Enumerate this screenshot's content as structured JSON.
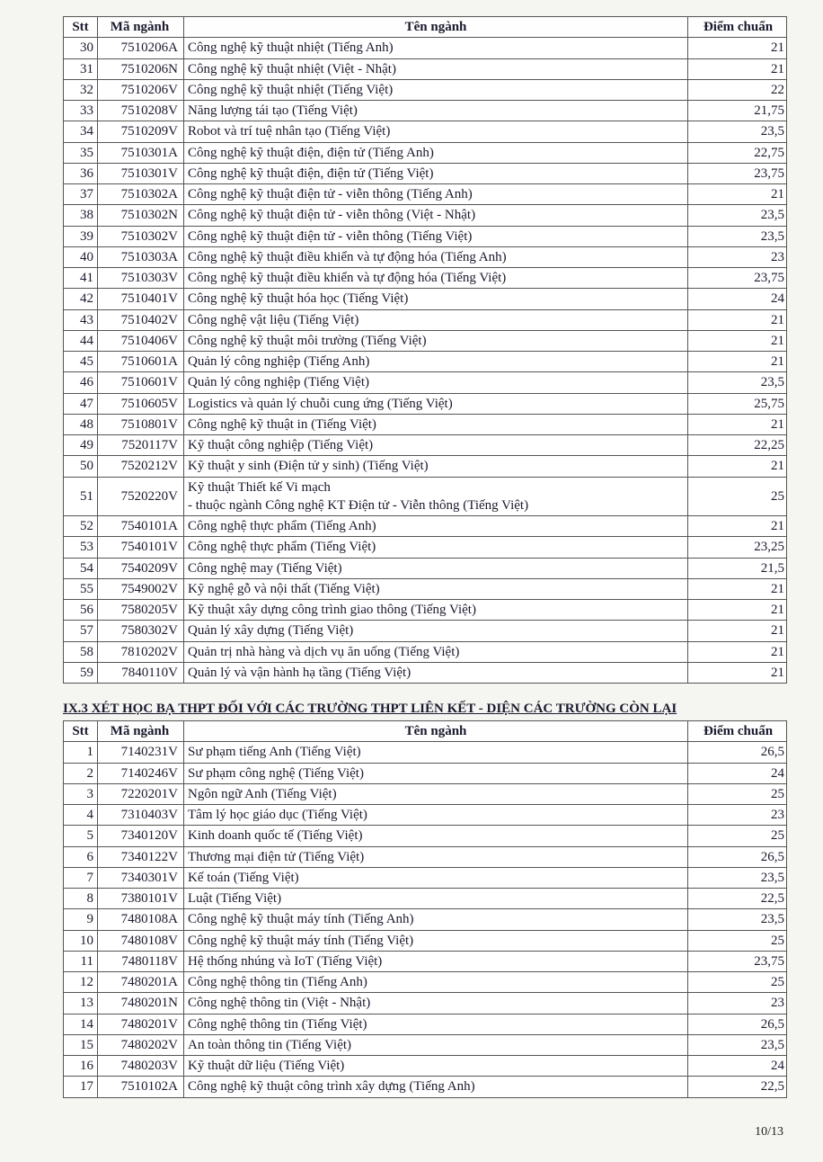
{
  "table1": {
    "headers": {
      "stt": "Stt",
      "ma": "Mã ngành",
      "ten": "Tên ngành",
      "diem": "Điểm chuẩn"
    },
    "rows": [
      {
        "stt": "30",
        "ma": "7510206A",
        "ten": "Công nghệ kỹ thuật nhiệt (Tiếng Anh)",
        "diem": "21"
      },
      {
        "stt": "31",
        "ma": "7510206N",
        "ten": "Công nghệ kỹ thuật nhiệt (Việt - Nhật)",
        "diem": "21"
      },
      {
        "stt": "32",
        "ma": "7510206V",
        "ten": "Công nghệ kỹ thuật nhiệt (Tiếng Việt)",
        "diem": "22"
      },
      {
        "stt": "33",
        "ma": "7510208V",
        "ten": "Năng lượng tái tạo (Tiếng Việt)",
        "diem": "21,75"
      },
      {
        "stt": "34",
        "ma": "7510209V",
        "ten": "Robot và trí tuệ nhân tạo (Tiếng Việt)",
        "diem": "23,5"
      },
      {
        "stt": "35",
        "ma": "7510301A",
        "ten": "Công nghệ kỹ thuật điện, điện tử (Tiếng Anh)",
        "diem": "22,75"
      },
      {
        "stt": "36",
        "ma": "7510301V",
        "ten": "Công nghệ kỹ thuật điện, điện tử (Tiếng Việt)",
        "diem": "23,75"
      },
      {
        "stt": "37",
        "ma": "7510302A",
        "ten": "Công nghệ kỹ thuật điện tử - viễn thông (Tiếng Anh)",
        "diem": "21"
      },
      {
        "stt": "38",
        "ma": "7510302N",
        "ten": "Công nghệ kỹ thuật điện tử - viễn thông (Việt - Nhật)",
        "diem": "23,5"
      },
      {
        "stt": "39",
        "ma": "7510302V",
        "ten": "Công nghệ kỹ thuật điện tử - viễn thông (Tiếng Việt)",
        "diem": "23,5"
      },
      {
        "stt": "40",
        "ma": "7510303A",
        "ten": "Công nghệ kỹ thuật điều khiển và tự động hóa (Tiếng Anh)",
        "diem": "23"
      },
      {
        "stt": "41",
        "ma": "7510303V",
        "ten": "Công nghệ kỹ thuật điều khiển và tự động hóa (Tiếng Việt)",
        "diem": "23,75"
      },
      {
        "stt": "42",
        "ma": "7510401V",
        "ten": "Công nghệ kỹ thuật hóa học (Tiếng Việt)",
        "diem": "24"
      },
      {
        "stt": "43",
        "ma": "7510402V",
        "ten": "Công nghệ vật liệu (Tiếng Việt)",
        "diem": "21"
      },
      {
        "stt": "44",
        "ma": "7510406V",
        "ten": "Công nghệ kỹ thuật môi trường (Tiếng Việt)",
        "diem": "21"
      },
      {
        "stt": "45",
        "ma": "7510601A",
        "ten": "Quản lý công nghiệp (Tiếng Anh)",
        "diem": "21"
      },
      {
        "stt": "46",
        "ma": "7510601V",
        "ten": "Quản lý công nghiệp (Tiếng Việt)",
        "diem": "23,5"
      },
      {
        "stt": "47",
        "ma": "7510605V",
        "ten": "Logistics và quản lý chuỗi cung ứng (Tiếng Việt)",
        "diem": "25,75"
      },
      {
        "stt": "48",
        "ma": "7510801V",
        "ten": "Công nghệ kỹ thuật in (Tiếng Việt)",
        "diem": "21"
      },
      {
        "stt": "49",
        "ma": "7520117V",
        "ten": "Kỹ thuật công nghiệp (Tiếng Việt)",
        "diem": "22,25"
      },
      {
        "stt": "50",
        "ma": "7520212V",
        "ten": "Kỹ thuật y sinh (Điện tử y sinh) (Tiếng Việt)",
        "diem": "21"
      },
      {
        "stt": "51",
        "ma": "7520220V",
        "ten": "Kỹ thuật Thiết kế Vi mạch\n- thuộc ngành Công nghệ KT Điện tử - Viễn thông (Tiếng Việt)",
        "diem": "25",
        "multi": true
      },
      {
        "stt": "52",
        "ma": "7540101A",
        "ten": "Công nghệ thực phẩm (Tiếng Anh)",
        "diem": "21"
      },
      {
        "stt": "53",
        "ma": "7540101V",
        "ten": "Công nghệ thực phẩm (Tiếng Việt)",
        "diem": "23,25"
      },
      {
        "stt": "54",
        "ma": "7540209V",
        "ten": "Công nghệ may (Tiếng Việt)",
        "diem": "21,5"
      },
      {
        "stt": "55",
        "ma": "7549002V",
        "ten": "Kỹ nghệ gỗ và nội thất (Tiếng Việt)",
        "diem": "21"
      },
      {
        "stt": "56",
        "ma": "7580205V",
        "ten": "Kỹ thuật xây dựng công trình giao thông (Tiếng Việt)",
        "diem": "21"
      },
      {
        "stt": "57",
        "ma": "7580302V",
        "ten": "Quản lý xây dựng (Tiếng Việt)",
        "diem": "21"
      },
      {
        "stt": "58",
        "ma": "7810202V",
        "ten": "Quản trị nhà hàng và dịch vụ ăn uống (Tiếng Việt)",
        "diem": "21"
      },
      {
        "stt": "59",
        "ma": "7840110V",
        "ten": "Quản lý và vận hành hạ tầng (Tiếng Việt)",
        "diem": "21"
      }
    ]
  },
  "section_title": "IX.3 XÉT HỌC BẠ THPT ĐỐI VỚI CÁC TRƯỜNG THPT LIÊN KẾT - DIỆN CÁC TRƯỜNG CÒN LẠI",
  "table2": {
    "headers": {
      "stt": "Stt",
      "ma": "Mã ngành",
      "ten": "Tên ngành",
      "diem": "Điểm chuẩn"
    },
    "rows": [
      {
        "stt": "1",
        "ma": "7140231V",
        "ten": "Sư phạm tiếng Anh (Tiếng Việt)",
        "diem": "26,5"
      },
      {
        "stt": "2",
        "ma": "7140246V",
        "ten": "Sư phạm công nghệ (Tiếng Việt)",
        "diem": "24"
      },
      {
        "stt": "3",
        "ma": "7220201V",
        "ten": "Ngôn ngữ Anh (Tiếng Việt)",
        "diem": "25"
      },
      {
        "stt": "4",
        "ma": "7310403V",
        "ten": "Tâm lý học giáo dục (Tiếng Việt)",
        "diem": "23"
      },
      {
        "stt": "5",
        "ma": "7340120V",
        "ten": "Kinh doanh quốc tế (Tiếng Việt)",
        "diem": "25"
      },
      {
        "stt": "6",
        "ma": "7340122V",
        "ten": "Thương mại điện tử (Tiếng Việt)",
        "diem": "26,5"
      },
      {
        "stt": "7",
        "ma": "7340301V",
        "ten": "Kế toán (Tiếng Việt)",
        "diem": "23,5"
      },
      {
        "stt": "8",
        "ma": "7380101V",
        "ten": "Luật (Tiếng Việt)",
        "diem": "22,5"
      },
      {
        "stt": "9",
        "ma": "7480108A",
        "ten": "Công nghệ kỹ thuật máy tính (Tiếng Anh)",
        "diem": "23,5"
      },
      {
        "stt": "10",
        "ma": "7480108V",
        "ten": "Công nghệ kỹ thuật máy tính (Tiếng Việt)",
        "diem": "25"
      },
      {
        "stt": "11",
        "ma": "7480118V",
        "ten": "Hệ thống nhúng và IoT (Tiếng Việt)",
        "diem": "23,75"
      },
      {
        "stt": "12",
        "ma": "7480201A",
        "ten": "Công nghệ thông tin (Tiếng Anh)",
        "diem": "25"
      },
      {
        "stt": "13",
        "ma": "7480201N",
        "ten": "Công nghệ thông tin (Việt - Nhật)",
        "diem": "23"
      },
      {
        "stt": "14",
        "ma": "7480201V",
        "ten": "Công nghệ thông tin (Tiếng Việt)",
        "diem": "26,5"
      },
      {
        "stt": "15",
        "ma": "7480202V",
        "ten": "An toàn thông tin (Tiếng Việt)",
        "diem": "23,5"
      },
      {
        "stt": "16",
        "ma": "7480203V",
        "ten": "Kỹ thuật dữ liệu (Tiếng Việt)",
        "diem": "24"
      },
      {
        "stt": "17",
        "ma": "7510102A",
        "ten": "Công nghệ kỹ thuật công trình xây dựng (Tiếng Anh)",
        "diem": "22,5"
      }
    ]
  },
  "page_number": "10/13"
}
